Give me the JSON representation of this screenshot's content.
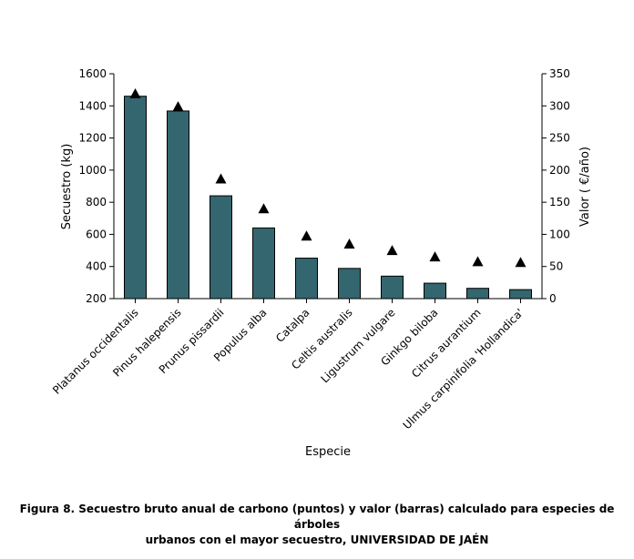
{
  "chart_data": {
    "type": "bar",
    "categories": [
      "Platanus occidentalis",
      "Pinus halepensis",
      "Prunus pissardii",
      "Populus alba",
      "Catalpa",
      "Celtis australis",
      "Ligustrum vulgare",
      "Ginkgo biloba",
      "Citrus aurantium",
      "Ulmus carpinifolia 'Hollandica'"
    ],
    "bar_axis": "right",
    "point_axis": "left",
    "bar_values": [
      315,
      292,
      160,
      110,
      63,
      47,
      35,
      24,
      16,
      14
    ],
    "point_values": [
      1475,
      1395,
      945,
      760,
      590,
      540,
      500,
      460,
      430,
      425
    ],
    "xlabel": "Especie",
    "ylabel_left": "Secuestro (kg)",
    "ylabel_right": "Valor ( €/año)",
    "ylim_left": [
      200,
      1600
    ],
    "ylim_right": [
      0,
      350
    ],
    "yticks_left": [
      "200",
      "400",
      "600",
      "800",
      "1000",
      "1200",
      "1400",
      "1600"
    ],
    "yticks_right": [
      "0",
      "50",
      "100",
      "150",
      "200",
      "250",
      "300",
      "350"
    ],
    "grid": false,
    "colors": {
      "bar": "#33666f",
      "point": "#000000"
    }
  },
  "caption": {
    "line1": "Figura 8. Secuestro bruto anual de carbono (puntos) y valor (barras) calculado para especies de árboles",
    "line2": "urbanos con el mayor secuestro, UNIVERSIDAD DE JAÉN"
  }
}
